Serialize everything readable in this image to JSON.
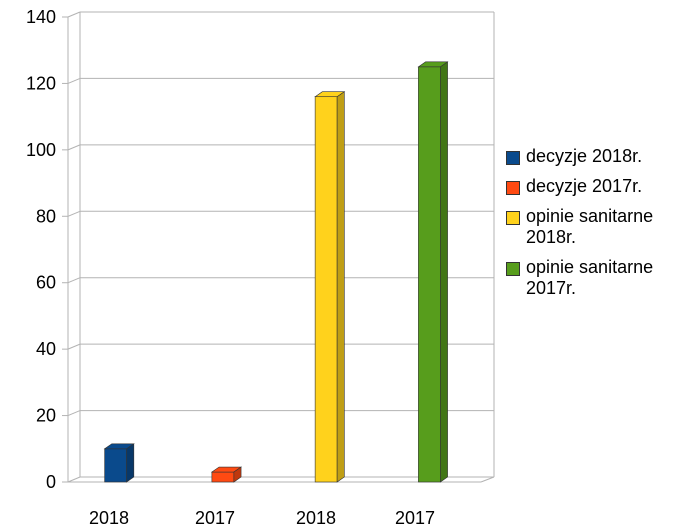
{
  "chart_data": {
    "type": "bar",
    "categories": [
      "2018",
      "2017",
      "2018",
      "2017"
    ],
    "series": [
      {
        "name": "decyzje 2018r.",
        "color": "#0a4a8c",
        "values": [
          10,
          null,
          null,
          null
        ]
      },
      {
        "name": "decyzje 2017r.",
        "color": "#ff4a12",
        "values": [
          null,
          3,
          null,
          null
        ]
      },
      {
        "name": "opinie sanitarne 2018r.",
        "color": "#ffd21c",
        "values": [
          null,
          null,
          116,
          null
        ]
      },
      {
        "name": "opinie sanitarne 2017r.",
        "color": "#579d1c",
        "values": [
          null,
          null,
          null,
          125
        ]
      }
    ],
    "yticks": [
      0,
      20,
      40,
      60,
      80,
      100,
      120,
      140
    ],
    "ylim": [
      0,
      140
    ],
    "grid": true,
    "legend_position": "right",
    "title": "",
    "xlabel": "",
    "ylabel": ""
  }
}
